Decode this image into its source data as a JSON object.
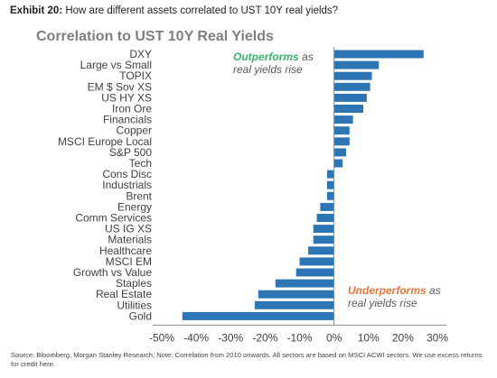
{
  "header": {
    "exhibit_label": "Exhibit 20:",
    "exhibit_question": "How are different assets correlated to UST 10Y real yields?"
  },
  "annotations": {
    "outperform_highlight": "Outperforms",
    "outperform_rest": " as",
    "outperform_line2": "real yields rise",
    "underperform_highlight": "Underperforms",
    "underperform_rest": " as",
    "underperform_line2": "real yields rise"
  },
  "footer": {
    "source": "Source: Bloomberg, Morgan Stanley Research; Note: Correlation from 2010 onwards. All sectors are based on MSCI ACWI sectors. We use excess returns for credit here."
  },
  "colors": {
    "bar": "#2e75b6",
    "axis": "#8c8c8c",
    "title": "#7f7f7f",
    "outperform": "#3bb273",
    "underperform": "#e8743b"
  },
  "chart_data": {
    "type": "bar",
    "orientation": "horizontal",
    "title": "Correlation to UST 10Y Real Yields",
    "xlabel": "",
    "ylabel": "",
    "xlim": [
      -0.5,
      0.3
    ],
    "xticks": [
      -0.5,
      -0.4,
      -0.3,
      -0.2,
      -0.1,
      0,
      0.1,
      0.2,
      0.3
    ],
    "xtick_labels": [
      "-50%",
      "-40%",
      "-30%",
      "-20%",
      "-10%",
      "0%",
      "10%",
      "20%",
      "30%"
    ],
    "grid": false,
    "legend": "none",
    "categories": [
      "DXY",
      "Large vs Small",
      "TOPIX",
      "EM $ Sov XS",
      "US HY XS",
      "Iron Ore",
      "Financials",
      "Copper",
      "MSCI Europe Local",
      "S&P 500",
      "Tech",
      "Cons Disc",
      "Industrials",
      "Brent",
      "Energy",
      "Comm Services",
      "US IG XS",
      "Materials",
      "Healthcare",
      "MSCI EM",
      "Growth vs Value",
      "Staples",
      "Real Estate",
      "Utilities",
      "Gold"
    ],
    "values": [
      0.26,
      0.13,
      0.11,
      0.105,
      0.095,
      0.085,
      0.055,
      0.045,
      0.045,
      0.035,
      0.025,
      -0.02,
      -0.02,
      -0.02,
      -0.04,
      -0.05,
      -0.06,
      -0.06,
      -0.075,
      -0.1,
      -0.11,
      -0.17,
      -0.22,
      -0.23,
      -0.44
    ]
  }
}
